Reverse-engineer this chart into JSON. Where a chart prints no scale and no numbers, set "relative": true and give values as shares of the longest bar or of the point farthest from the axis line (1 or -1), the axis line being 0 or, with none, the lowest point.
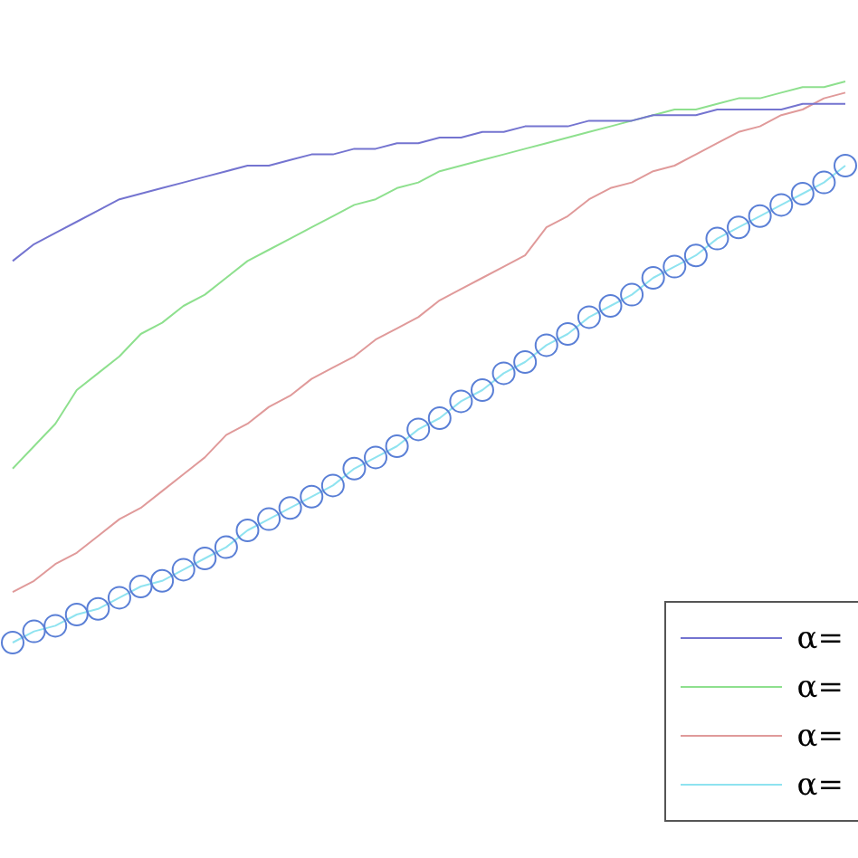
{
  "chart_data": {
    "type": "line",
    "relative": true,
    "legend": "bottom right",
    "categories": [
      null,
      null,
      null,
      null,
      null,
      null,
      null,
      null,
      null,
      null,
      null,
      null,
      null,
      null,
      null,
      null,
      null,
      null,
      null,
      null,
      null,
      null,
      null,
      null,
      null,
      null,
      null,
      null,
      null,
      null,
      null,
      null,
      null,
      null,
      null,
      null,
      null,
      null,
      null,
      null
    ],
    "series": [
      {
        "name": "α=",
        "color": "#7474d0",
        "marker": "none",
        "values": [
          0.68,
          0.71,
          0.73,
          0.75,
          0.77,
          0.79,
          0.8,
          0.81,
          0.82,
          0.83,
          0.84,
          0.85,
          0.85,
          0.86,
          0.87,
          0.87,
          0.88,
          0.88,
          0.89,
          0.89,
          0.9,
          0.9,
          0.91,
          0.91,
          0.92,
          0.92,
          0.92,
          0.93,
          0.93,
          0.93,
          0.94,
          0.94,
          0.94,
          0.95,
          0.95,
          0.95,
          0.95,
          0.96,
          0.96,
          0.96
        ]
      },
      {
        "name": "α=",
        "color": "#8ee08e",
        "marker": "none",
        "values": [
          0.31,
          0.35,
          0.39,
          0.45,
          0.48,
          0.51,
          0.55,
          0.57,
          0.6,
          0.62,
          0.65,
          0.68,
          0.7,
          0.72,
          0.74,
          0.76,
          0.78,
          0.79,
          0.81,
          0.82,
          0.84,
          0.85,
          0.86,
          0.87,
          0.88,
          0.89,
          0.9,
          0.91,
          0.92,
          0.93,
          0.94,
          0.95,
          0.95,
          0.96,
          0.97,
          0.97,
          0.98,
          0.99,
          0.99,
          1
        ]
      },
      {
        "name": "α=",
        "color": "#e09a9a",
        "marker": "none",
        "values": [
          0.09,
          0.11,
          0.14,
          0.16,
          0.19,
          0.22,
          0.24,
          0.27,
          0.3,
          0.33,
          0.37,
          0.39,
          0.42,
          0.44,
          0.47,
          0.49,
          0.51,
          0.54,
          0.56,
          0.58,
          0.61,
          0.63,
          0.65,
          0.67,
          0.69,
          0.74,
          0.76,
          0.79,
          0.81,
          0.82,
          0.84,
          0.85,
          0.87,
          0.89,
          0.91,
          0.92,
          0.94,
          0.95,
          0.97,
          0.98
        ]
      },
      {
        "name": "α=",
        "color": "#8fe3f0",
        "marker": "circle",
        "values": [
          0,
          0.02,
          0.03,
          0.05,
          0.06,
          0.08,
          0.1,
          0.11,
          0.13,
          0.15,
          0.17,
          0.2,
          0.22,
          0.24,
          0.26,
          0.28,
          0.31,
          0.33,
          0.35,
          0.38,
          0.4,
          0.43,
          0.45,
          0.48,
          0.5,
          0.53,
          0.55,
          0.58,
          0.6,
          0.62,
          0.65,
          0.67,
          0.69,
          0.72,
          0.74,
          0.76,
          0.78,
          0.8,
          0.82,
          0.85
        ]
      }
    ]
  }
}
